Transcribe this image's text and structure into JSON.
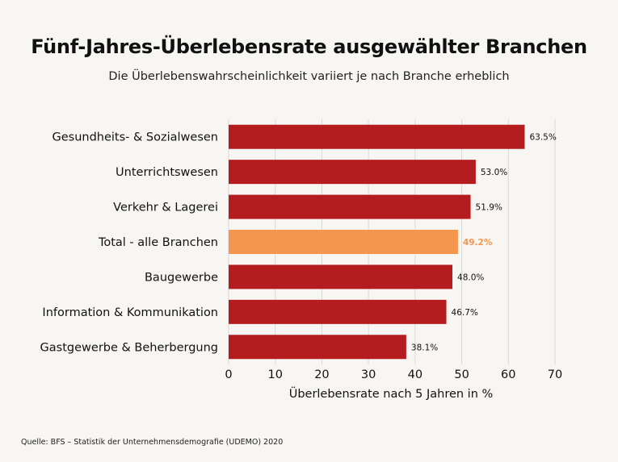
{
  "chart_data": {
    "type": "bar",
    "orientation": "horizontal",
    "title": "Fünf-Jahres-Überlebensrate ausgewählter Branchen",
    "subtitle": "Die Überlebenswahrscheinlichkeit variiert je nach Branche erheblich",
    "xlabel": "Überlebensrate nach 5 Jahren in %",
    "ylabel": "",
    "xlim": [
      0,
      70
    ],
    "xticks": [
      0,
      10,
      20,
      30,
      40,
      50,
      60,
      70
    ],
    "grid": true,
    "categories": [
      "Gesundheits- & Sozialwesen",
      "Unterrichtswesen",
      "Verkehr & Lagerei",
      "Total - alle Branchen",
      "Baugewerbe",
      "Information & Kommunikation",
      "Gastgewerbe & Beherbergung"
    ],
    "values": [
      63.5,
      53.0,
      51.9,
      49.2,
      48.0,
      46.7,
      38.1
    ],
    "value_labels": [
      "63.5%",
      "53.0%",
      "51.9%",
      "49.2%",
      "48.0%",
      "46.7%",
      "38.1%"
    ],
    "highlight_index": 3,
    "colors": {
      "bar": "#b51c1f",
      "highlight": "#f5964f",
      "grid": "#d8d8d8"
    }
  },
  "footer": {
    "source": "Quelle: BFS – Statistik der Unternehmensdemografie (UDEMO) 2020"
  }
}
